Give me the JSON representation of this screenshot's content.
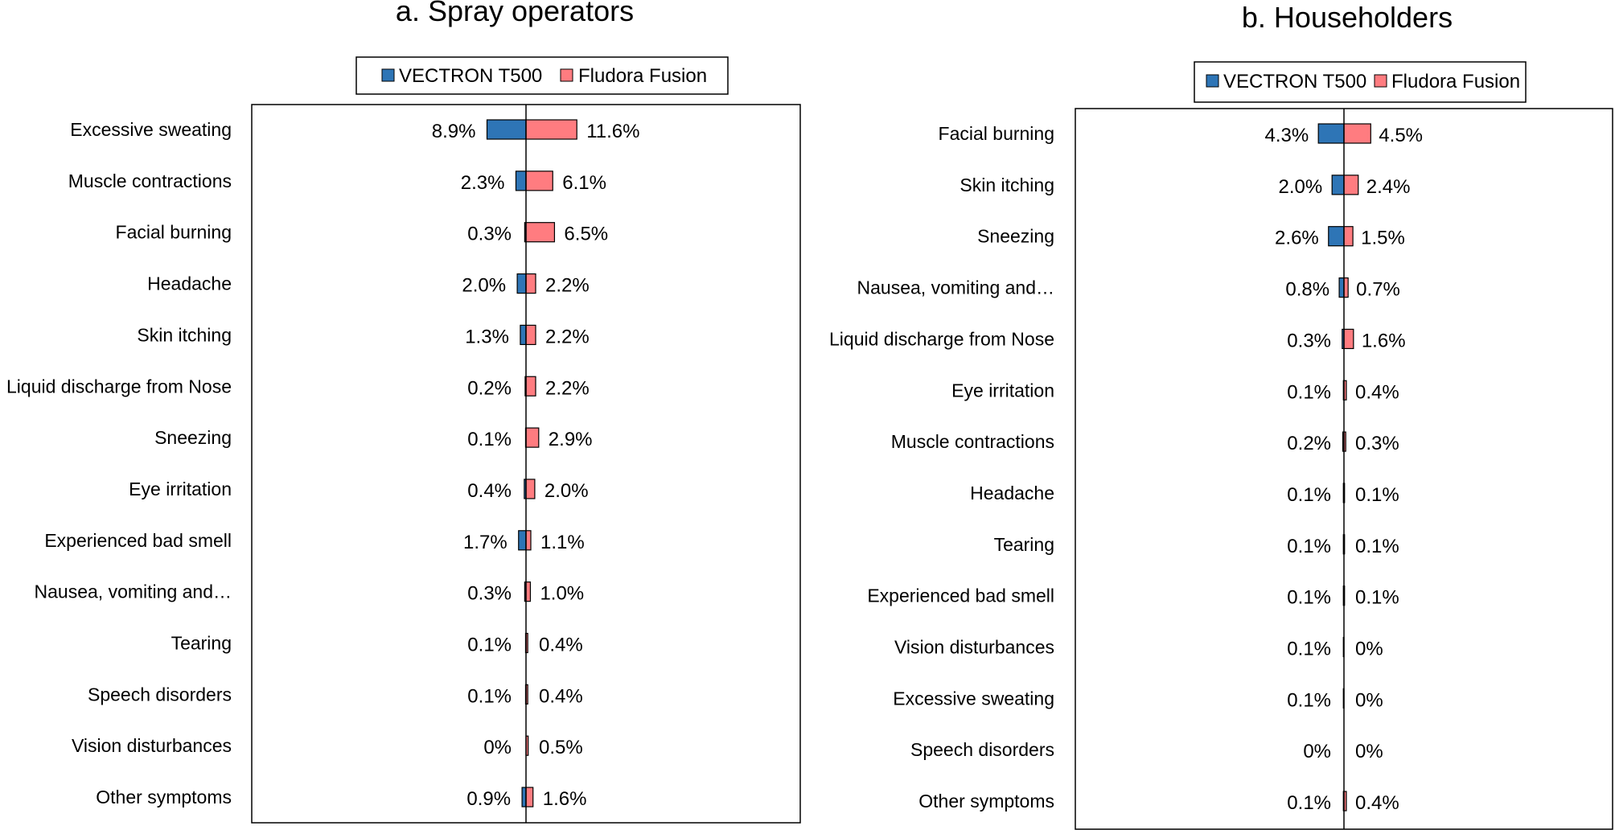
{
  "chart_data": [
    {
      "type": "bar",
      "orientation": "horizontal-diverging",
      "title": "a. Spray operators",
      "xlabel": "",
      "ylabel": "",
      "legend": {
        "placement": "top",
        "entries": [
          "VECTRON T500",
          "Fludora Fusion"
        ]
      },
      "categories": [
        "Excessive sweating",
        "Muscle contractions",
        "Facial burning",
        "Headache",
        "Skin itching",
        "Liquid discharge from Nose",
        "Sneezing",
        "Eye irritation",
        "Experienced bad smell",
        "Nausea, vomiting and…",
        "Tearing",
        "Speech disorders",
        "Vision disturbances",
        "Other symptoms"
      ],
      "series": [
        {
          "name": "VECTRON T500",
          "color": "#2e75b6",
          "values": [
            8.9,
            2.3,
            0.3,
            2.0,
            1.3,
            0.2,
            0.1,
            0.4,
            1.7,
            0.3,
            0.1,
            0.1,
            0,
            0.9
          ],
          "labels": [
            "8.9%",
            "2.3%",
            "0.3%",
            "2.0%",
            "1.3%",
            "0.2%",
            "0.1%",
            "0.4%",
            "1.7%",
            "0.3%",
            "0.1%",
            "0.1%",
            "0%",
            "0.9%"
          ]
        },
        {
          "name": "Fludora Fusion",
          "color": "#ff7c80",
          "values": [
            11.6,
            6.1,
            6.5,
            2.2,
            2.2,
            2.2,
            2.9,
            2.0,
            1.1,
            1.0,
            0.4,
            0.4,
            0.5,
            1.6
          ],
          "labels": [
            "11.6%",
            "6.1%",
            "6.5%",
            "2.2%",
            "2.2%",
            "2.2%",
            "2.9%",
            "2.0%",
            "1.1%",
            "1.0%",
            "0.4%",
            "0.4%",
            "0.5%",
            "1.6%"
          ]
        }
      ]
    },
    {
      "type": "bar",
      "orientation": "horizontal-diverging",
      "title": "b. Householders",
      "xlabel": "",
      "ylabel": "",
      "legend": {
        "placement": "top",
        "entries": [
          "VECTRON T500",
          "Fludora Fusion"
        ]
      },
      "categories": [
        "Facial burning",
        "Skin itching",
        "Sneezing",
        "Nausea, vomiting and…",
        "Liquid discharge from Nose",
        "Eye irritation",
        "Muscle contractions",
        "Headache",
        "Tearing",
        "Experienced bad smell",
        "Vision disturbances",
        "Excessive sweating",
        "Speech disorders",
        "Other symptoms"
      ],
      "series": [
        {
          "name": "VECTRON T500",
          "color": "#2e75b6",
          "values": [
            4.3,
            2.0,
            2.6,
            0.8,
            0.3,
            0.1,
            0.2,
            0.1,
            0.1,
            0.1,
            0.1,
            0.1,
            0,
            0.1
          ],
          "labels": [
            "4.3%",
            "2.0%",
            "2.6%",
            "0.8%",
            "0.3%",
            "0.1%",
            "0.2%",
            "0.1%",
            "0.1%",
            "0.1%",
            "0.1%",
            "0.1%",
            "0%",
            "0.1%"
          ]
        },
        {
          "name": "Fludora Fusion",
          "color": "#ff7c80",
          "values": [
            4.5,
            2.4,
            1.5,
            0.7,
            1.6,
            0.4,
            0.3,
            0.1,
            0.1,
            0.1,
            0,
            0,
            0,
            0.4
          ],
          "labels": [
            "4.5%",
            "2.4%",
            "1.5%",
            "0.7%",
            "1.6%",
            "0.4%",
            "0.3%",
            "0.1%",
            "0.1%",
            "0.1%",
            "0%",
            "0%",
            "0%",
            "0.4%"
          ]
        }
      ]
    }
  ]
}
